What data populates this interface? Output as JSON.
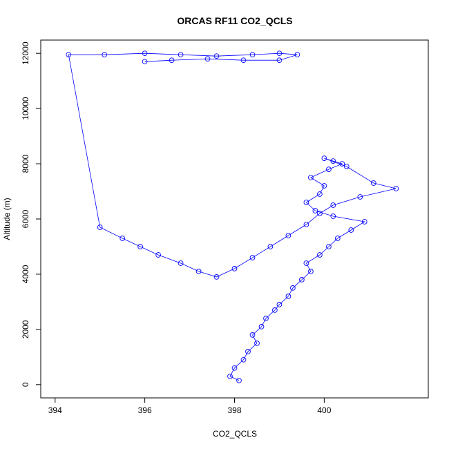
{
  "chart_data": {
    "type": "scatter",
    "title": "ORCAS RF11 CO2_QCLS",
    "xlabel": "CO2_QCLS",
    "ylabel": "Altitude (m)",
    "xlim": [
      394,
      402
    ],
    "ylim": [
      0,
      12000
    ],
    "x_ticks": [
      394,
      396,
      398,
      400
    ],
    "y_ticks": [
      0,
      2000,
      4000,
      6000,
      8000,
      10000,
      12000
    ],
    "grid": false,
    "legend": "none",
    "marker": "open-circle",
    "connect_points": true,
    "color": "#0000ff",
    "series": [
      {
        "x": [
          398.1,
          397.9,
          398.0,
          398.2,
          398.3,
          398.5,
          398.4,
          398.6,
          398.7,
          398.9,
          399.0,
          399.2,
          399.3,
          399.5,
          399.7,
          399.6,
          399.9,
          400.1,
          400.3,
          400.6,
          400.9,
          400.2,
          399.8,
          399.6,
          399.9,
          400.0,
          399.7,
          400.1,
          400.4,
          400.2,
          400.0,
          400.5,
          401.1,
          401.6,
          400.8,
          400.2,
          399.9,
          399.6,
          399.2,
          398.8,
          398.4,
          398.0,
          397.6,
          397.2,
          396.8,
          396.3,
          395.9,
          395.5,
          395.0,
          394.3,
          395.1,
          396.0,
          396.8,
          397.6,
          398.4,
          399.0,
          399.4,
          399.0,
          398.2,
          397.4,
          396.6,
          396.0
        ],
        "y": [
          150,
          300,
          600,
          900,
          1200,
          1500,
          1800,
          2100,
          2400,
          2700,
          2900,
          3200,
          3500,
          3800,
          4100,
          4400,
          4700,
          5000,
          5300,
          5600,
          5900,
          6100,
          6300,
          6600,
          6900,
          7200,
          7500,
          7800,
          8000,
          8100,
          8200,
          7900,
          7300,
          7100,
          6800,
          6500,
          6200,
          5800,
          5400,
          5000,
          4600,
          4200,
          3900,
          4100,
          4400,
          4700,
          5000,
          5300,
          5700,
          11950,
          11950,
          12000,
          11950,
          11900,
          11950,
          12000,
          11950,
          11750,
          11750,
          11800,
          11750,
          11700
        ]
      }
    ]
  }
}
